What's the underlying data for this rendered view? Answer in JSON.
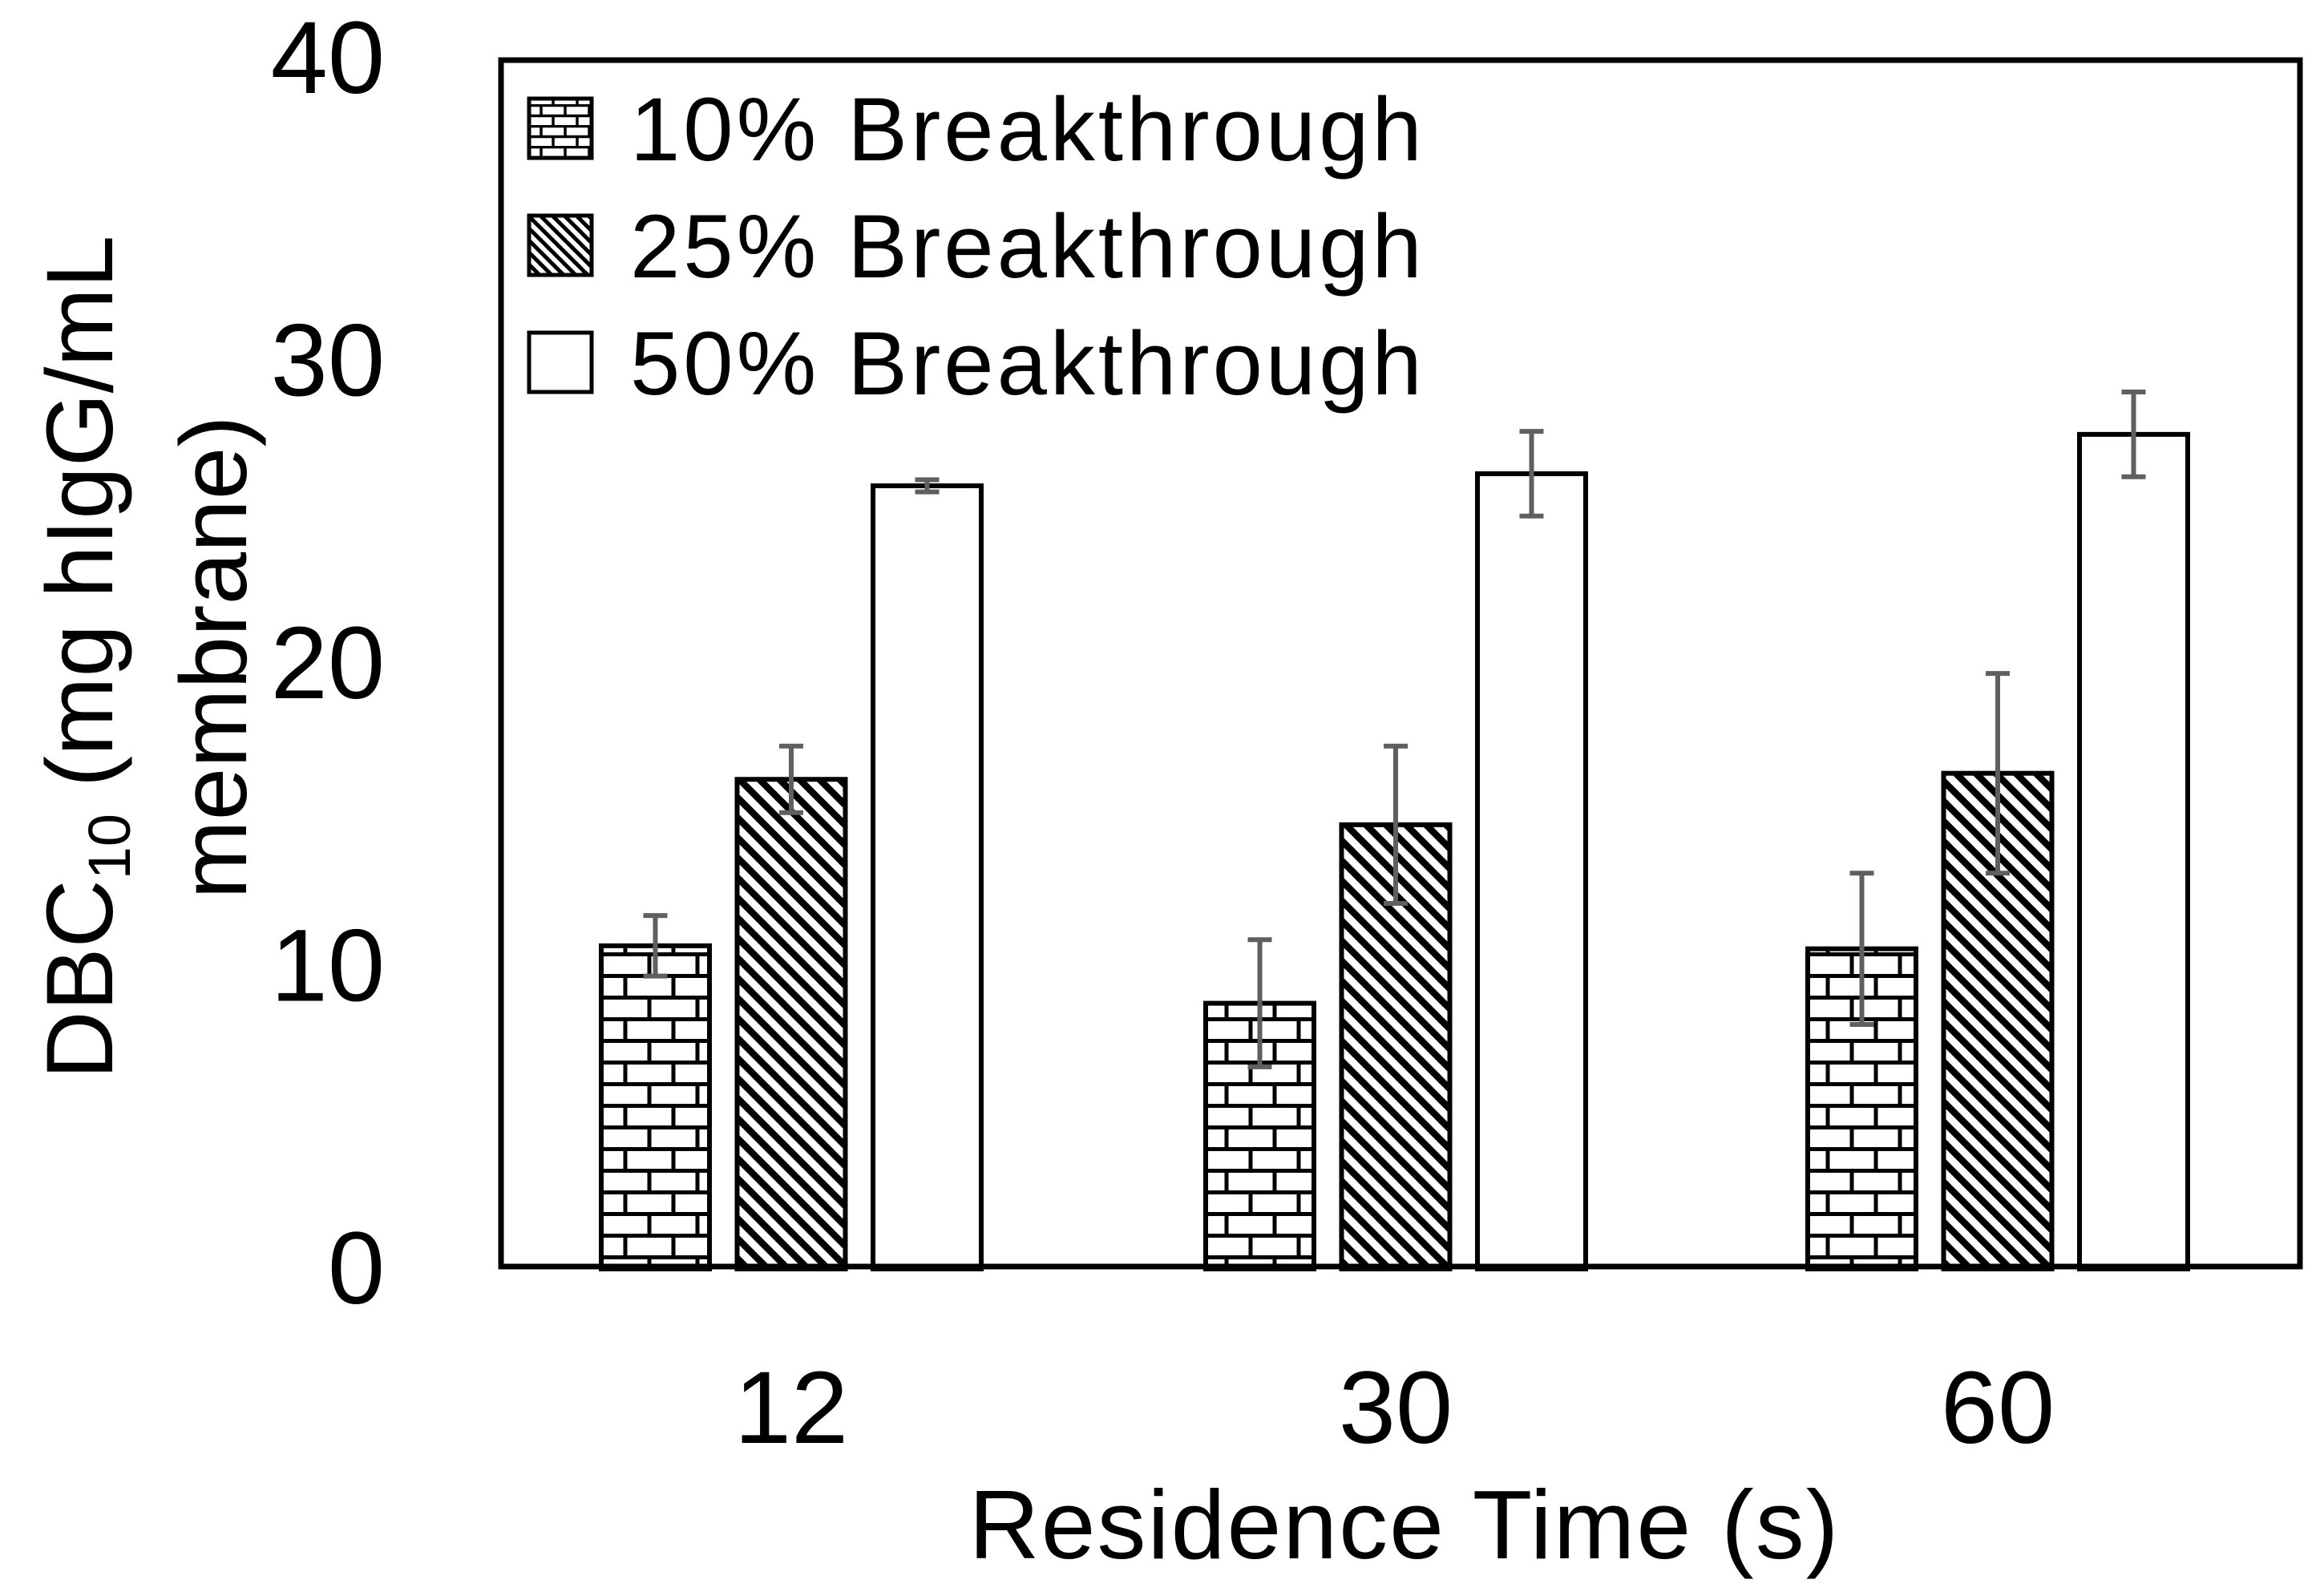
{
  "figure": {
    "background": "#ffffff",
    "ink": "#000000",
    "error_bar_color": "#5f5f5f"
  },
  "y_axis": {
    "title_prefix": "DBC",
    "title_subscript": "10",
    "title_suffix": " (mg hIgG/mL",
    "title_line2": "membrane)",
    "ticks": [
      "0",
      "10",
      "20",
      "30",
      "40"
    ],
    "tick_values": [
      0,
      10,
      20,
      30,
      40
    ],
    "range": [
      0,
      40
    ]
  },
  "x_axis": {
    "title": "Residence Time (s)",
    "categories": [
      "12",
      "30",
      "60"
    ]
  },
  "legend": {
    "items": [
      {
        "label": "10% Breakthrough",
        "pattern": "brick"
      },
      {
        "label": "25% Breakthrough",
        "pattern": "diagonal"
      },
      {
        "label": "50% Breakthrough",
        "pattern": "none"
      }
    ]
  },
  "chart_data": {
    "type": "bar",
    "title": "",
    "xlabel": "Residence Time (s)",
    "ylabel": "DBC10 (mg hIgG/mL membrane)",
    "categories": [
      "12",
      "30",
      "60"
    ],
    "ylim": [
      0,
      40
    ],
    "yticks": [
      0,
      10,
      20,
      30,
      40
    ],
    "grid": false,
    "legend_position": "inside-top-left",
    "bar_fill": "pattern-coded (brick / diagonal-hatch / white), black outlines, gray error bars",
    "series": [
      {
        "name": "10% Breakthrough",
        "pattern": "brick",
        "values": [
          10.6,
          8.7,
          10.5
        ],
        "errors": [
          1.0,
          2.1,
          2.5
        ]
      },
      {
        "name": "25% Breakthrough",
        "pattern": "diagonal",
        "values": [
          16.1,
          14.6,
          16.3
        ],
        "errors": [
          1.1,
          2.6,
          3.3
        ]
      },
      {
        "name": "50% Breakthrough",
        "pattern": "none",
        "values": [
          25.8,
          26.2,
          27.5
        ],
        "errors": [
          0.2,
          1.4,
          1.4
        ]
      }
    ]
  }
}
